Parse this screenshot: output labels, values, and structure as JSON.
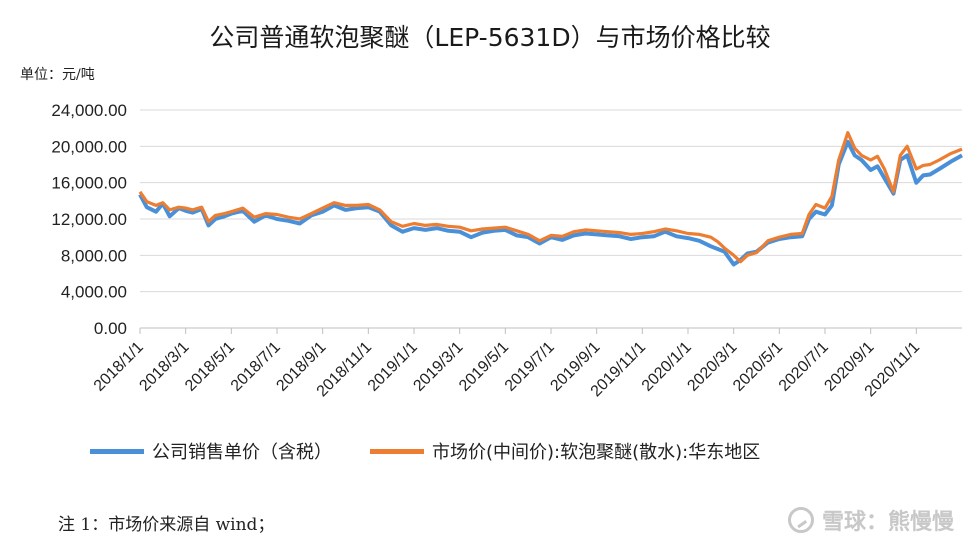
{
  "colors": {
    "company": "#4a90d9",
    "market": "#ed7d31",
    "grid": "#d9d9d9",
    "axis": "#bfbfbf"
  },
  "unit_label": "单位：元/吨",
  "legend": {
    "company": "公司销售单价（含税）",
    "market": "市场价(中间价):软泡聚醚(散水):华东地区"
  },
  "note": "注 1：市场价来源自 wind；",
  "watermark": {
    "icon": "snowball-logo-icon",
    "text": "雪球：熊慢慢"
  },
  "chart_data": {
    "type": "line",
    "title": "公司普通软泡聚醚（LEP-5631D）与市场价格比较",
    "xlabel": "",
    "ylabel": "单位：元/吨",
    "ylim": [
      0,
      24000
    ],
    "yticks": [
      0,
      4000,
      8000,
      12000,
      16000,
      20000,
      24000
    ],
    "ytick_labels": [
      "0.00",
      "4,000.00",
      "8,000.00",
      "12,000.00",
      "16,000.00",
      "20,000.00",
      "24,000.00"
    ],
    "xlim": [
      0,
      36
    ],
    "xticks": [
      0,
      2,
      4,
      6,
      8,
      10,
      12,
      14,
      16,
      18,
      20,
      22,
      24,
      26,
      28,
      30,
      32,
      34
    ],
    "xtick_labels": [
      "2018/1/1",
      "2018/3/1",
      "2018/5/1",
      "2018/7/1",
      "2018/9/1",
      "2018/11/1",
      "2019/1/1",
      "2019/3/1",
      "2019/5/1",
      "2019/7/1",
      "2019/9/1",
      "2019/11/1",
      "2020/1/1",
      "2020/3/1",
      "2020/5/1",
      "2020/7/1",
      "2020/9/1",
      "2020/11/1"
    ],
    "grid": true,
    "legend_position": "bottom",
    "series": [
      {
        "name": "公司销售单价（含税）",
        "color": "#4a90d9",
        "x": [
          0,
          0.3,
          0.7,
          1,
          1.3,
          1.7,
          2,
          2.3,
          2.7,
          3,
          3.3,
          3.7,
          4,
          4.5,
          5,
          5.5,
          6,
          6.5,
          7,
          7.5,
          8,
          8.5,
          9,
          9.5,
          10,
          10.5,
          11,
          11.5,
          12,
          12.5,
          13,
          13.5,
          14,
          14.5,
          15,
          15.5,
          16,
          16.5,
          17,
          17.5,
          18,
          18.5,
          19,
          19.5,
          20,
          20.5,
          21,
          21.5,
          22,
          22.5,
          23,
          23.5,
          24,
          24.5,
          25,
          25.3,
          25.6,
          26,
          26.3,
          26.6,
          27,
          27.5,
          28,
          28.5,
          29,
          29.3,
          29.6,
          30,
          30.3,
          30.6,
          31,
          31.3,
          31.6,
          32,
          32.3,
          32.6,
          33,
          33.3,
          33.6,
          34,
          34.3,
          34.6,
          35,
          35.5,
          36
        ],
        "y": [
          14700,
          13300,
          12800,
          13700,
          12300,
          13200,
          12900,
          12700,
          13100,
          11300,
          12000,
          12300,
          12600,
          12900,
          11700,
          12400,
          12000,
          11800,
          11500,
          12400,
          12800,
          13500,
          13000,
          13200,
          13300,
          12800,
          11300,
          10600,
          11000,
          10800,
          11000,
          10700,
          10600,
          10000,
          10500,
          10700,
          10800,
          10200,
          10000,
          9300,
          10000,
          9700,
          10200,
          10400,
          10300,
          10200,
          10100,
          9800,
          10000,
          10100,
          10600,
          10100,
          9900,
          9600,
          9000,
          8700,
          8400,
          7000,
          7500,
          8200,
          8400,
          9400,
          9800,
          10000,
          10100,
          12000,
          12800,
          12500,
          13500,
          18000,
          20500,
          19000,
          18500,
          17400,
          17800,
          16500,
          14800,
          18500,
          19000,
          16000,
          16800,
          16900,
          17500,
          18300,
          19000
        ]
      },
      {
        "name": "市场价(中间价):软泡聚醚(散水):华东地区",
        "color": "#ed7d31",
        "x": [
          0,
          0.3,
          0.7,
          1,
          1.3,
          1.7,
          2,
          2.3,
          2.7,
          3,
          3.3,
          3.7,
          4,
          4.5,
          5,
          5.5,
          6,
          6.5,
          7,
          7.5,
          8,
          8.5,
          9,
          9.5,
          10,
          10.5,
          11,
          11.5,
          12,
          12.5,
          13,
          13.5,
          14,
          14.5,
          15,
          15.5,
          16,
          16.5,
          17,
          17.5,
          18,
          18.5,
          19,
          19.5,
          20,
          20.5,
          21,
          21.5,
          22,
          22.5,
          23,
          23.5,
          24,
          24.5,
          25,
          25.3,
          25.6,
          26,
          26.3,
          26.6,
          27,
          27.5,
          28,
          28.5,
          29,
          29.3,
          29.6,
          30,
          30.3,
          30.6,
          31,
          31.3,
          31.6,
          32,
          32.3,
          32.6,
          33,
          33.3,
          33.6,
          34,
          34.3,
          34.6,
          35,
          35.5,
          36
        ],
        "y": [
          15000,
          13900,
          13500,
          13800,
          13000,
          13300,
          13200,
          13000,
          13300,
          11700,
          12400,
          12600,
          12800,
          13200,
          12200,
          12600,
          12500,
          12200,
          12000,
          12600,
          13200,
          13800,
          13500,
          13500,
          13600,
          13000,
          11700,
          11200,
          11500,
          11300,
          11400,
          11200,
          11100,
          10700,
          10900,
          11000,
          11100,
          10700,
          10300,
          9600,
          10200,
          10100,
          10600,
          10800,
          10700,
          10600,
          10500,
          10300,
          10400,
          10600,
          10900,
          10700,
          10400,
          10300,
          10000,
          9500,
          8800,
          8000,
          7300,
          8000,
          8300,
          9600,
          10000,
          10300,
          10400,
          12500,
          13600,
          13200,
          14500,
          18500,
          21500,
          19800,
          19000,
          18500,
          18900,
          17500,
          15000,
          19000,
          20000,
          17500,
          17900,
          18000,
          18500,
          19200,
          19700
        ]
      }
    ]
  }
}
